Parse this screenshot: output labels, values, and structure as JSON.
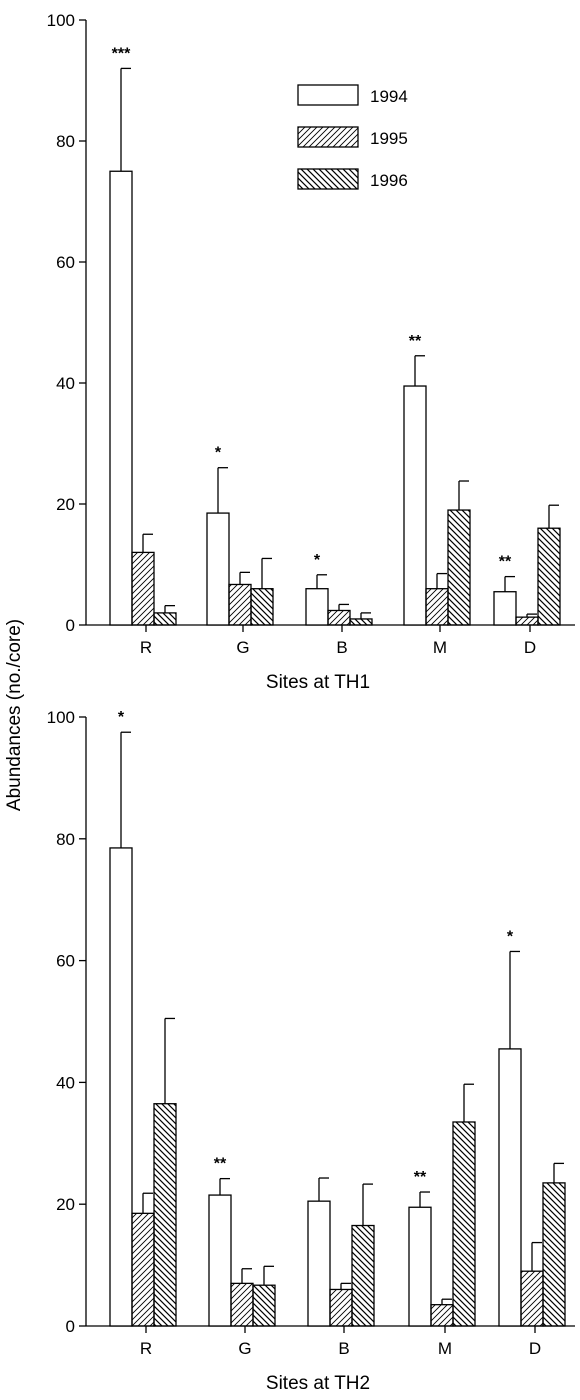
{
  "colors": {
    "ink": "#000000",
    "background": "#ffffff"
  },
  "shared_ylabel": "Abundances (no./core)",
  "legend": {
    "placement": "top-center",
    "items": [
      {
        "label": "1994",
        "pattern": "open"
      },
      {
        "label": "1995",
        "pattern": "hatch-forward"
      },
      {
        "label": "1996",
        "pattern": "hatch-back"
      }
    ]
  },
  "chart_data": [
    {
      "type": "bar",
      "xlabel": "Sites at TH1",
      "ylabel": "Abundances (no./core)",
      "ylim": [
        0,
        100
      ],
      "yticks": [
        "0",
        "20",
        "40",
        "60",
        "80",
        "100"
      ],
      "grid": false,
      "categories": [
        "R",
        "G",
        "B",
        "M",
        "D"
      ],
      "series": [
        {
          "name": "1994",
          "values": [
            75,
            18.5,
            6,
            39.5,
            5.5
          ],
          "errors": [
            17,
            7.5,
            2.3,
            5,
            2.5
          ]
        },
        {
          "name": "1995",
          "values": [
            12,
            6.7,
            2.4,
            6,
            1.3
          ],
          "errors": [
            3,
            2,
            1,
            2.5,
            0.5
          ]
        },
        {
          "name": "1996",
          "values": [
            2,
            6,
            1,
            19,
            16
          ],
          "errors": [
            1.2,
            5,
            1,
            4.8,
            3.8
          ]
        }
      ],
      "significance": [
        "***",
        "*",
        "*",
        "**",
        "**"
      ]
    },
    {
      "type": "bar",
      "xlabel": "Sites at TH2",
      "ylabel": "Abundances (no./core)",
      "ylim": [
        0,
        100
      ],
      "yticks": [
        "0",
        "20",
        "40",
        "60",
        "80",
        "100"
      ],
      "grid": false,
      "categories": [
        "R",
        "G",
        "B",
        "M",
        "D"
      ],
      "series": [
        {
          "name": "1994",
          "values": [
            78.5,
            21.5,
            20.5,
            19.5,
            45.5
          ],
          "errors": [
            19,
            2.7,
            3.8,
            2.5,
            16
          ]
        },
        {
          "name": "1995",
          "values": [
            18.5,
            7,
            6,
            3.5,
            9
          ],
          "errors": [
            3.3,
            2.4,
            1,
            0.9,
            4.7
          ]
        },
        {
          "name": "1996",
          "values": [
            36.5,
            6.7,
            16.5,
            33.5,
            23.5
          ],
          "errors": [
            14,
            3.1,
            6.8,
            6.2,
            3.2
          ]
        }
      ],
      "significance": [
        "*",
        "**",
        "",
        "**",
        "*"
      ]
    }
  ]
}
